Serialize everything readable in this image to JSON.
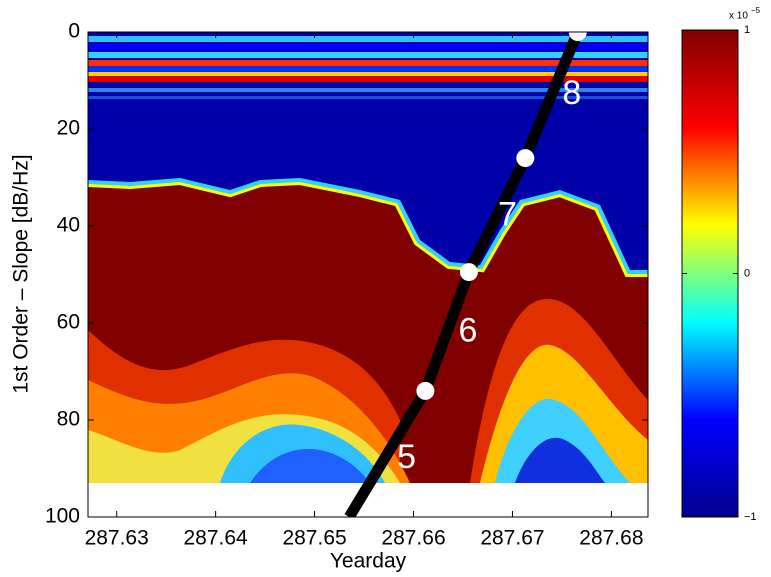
{
  "chart_data": {
    "type": "heatmap",
    "xlabel": "Yearday",
    "ylabel": "1st Order – Slope [dB/Hz]",
    "xlim": [
      287.6271,
      287.6837
    ],
    "ylim": [
      100,
      0
    ],
    "xticks": [
      287.63,
      287.64,
      287.65,
      287.66,
      287.67,
      287.68
    ],
    "yticks": [
      0,
      20,
      40,
      60,
      80,
      100
    ],
    "colorbar": {
      "clim": [
        -1e-05,
        1e-05
      ],
      "ticks": [
        {
          "value": 1e-05,
          "label": "1"
        },
        0,
        {
          "value": -1e-05,
          "label": "−1"
        }
      ],
      "multiplier": "x 10",
      "exponent": "−5",
      "colors": [
        "#00008f",
        "#0000ff",
        "#00ffff",
        "#ffff00",
        "#ff0000",
        "#800000"
      ]
    },
    "track": {
      "color": "#000000",
      "x": [
        287.6535,
        287.6612,
        287.6656,
        287.6713,
        287.6766
      ],
      "y": [
        100,
        74,
        49.5,
        26,
        0
      ]
    },
    "waypoints": {
      "color": "#ffffff",
      "x": [
        287.6612,
        287.6656,
        287.6713,
        287.6766
      ],
      "y": [
        74,
        49.5,
        26,
        0
      ]
    },
    "annotations": [
      {
        "text": "5",
        "x": 287.6593,
        "y": 88
      },
      {
        "text": "6",
        "x": 287.6655,
        "y": 62
      },
      {
        "text": "7",
        "x": 287.6695,
        "y": 38
      },
      {
        "text": "8",
        "x": 287.676,
        "y": 13
      }
    ]
  }
}
